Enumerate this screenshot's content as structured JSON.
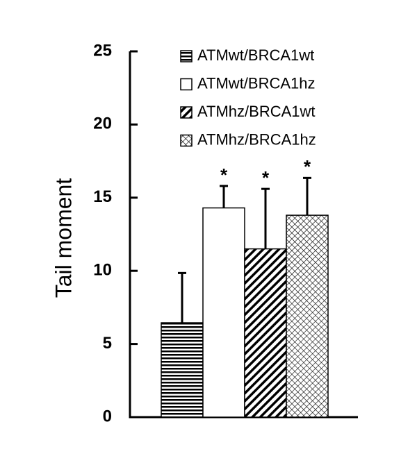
{
  "chart_data": {
    "type": "bar",
    "y_label": "Tail moment",
    "categories": [
      null
    ],
    "series": [
      {
        "name": "ATMwt/BRCA1wt",
        "color": "#000000",
        "pattern": "hlines",
        "values": [
          6.45
        ],
        "errors": [
          3.4
        ]
      },
      {
        "name": "ATMwt/BRCA1hz",
        "color": "#000000",
        "pattern": "none",
        "values": [
          14.3
        ],
        "errors": [
          1.5
        ],
        "annotation": "*"
      },
      {
        "name": "ATMhz/BRCA1wt",
        "color": "#000000",
        "pattern": "diagonal",
        "values": [
          11.5
        ],
        "errors": [
          4.1
        ],
        "annotation": "*"
      },
      {
        "name": "ATMhz/BRCA1hz",
        "color": "#000000",
        "pattern": "crosshatch",
        "values": [
          13.8
        ],
        "errors": [
          2.55
        ],
        "annotation": "*"
      }
    ],
    "ylim": [
      0,
      25
    ],
    "yticks": [
      0,
      5,
      10,
      15,
      20,
      25
    ]
  }
}
